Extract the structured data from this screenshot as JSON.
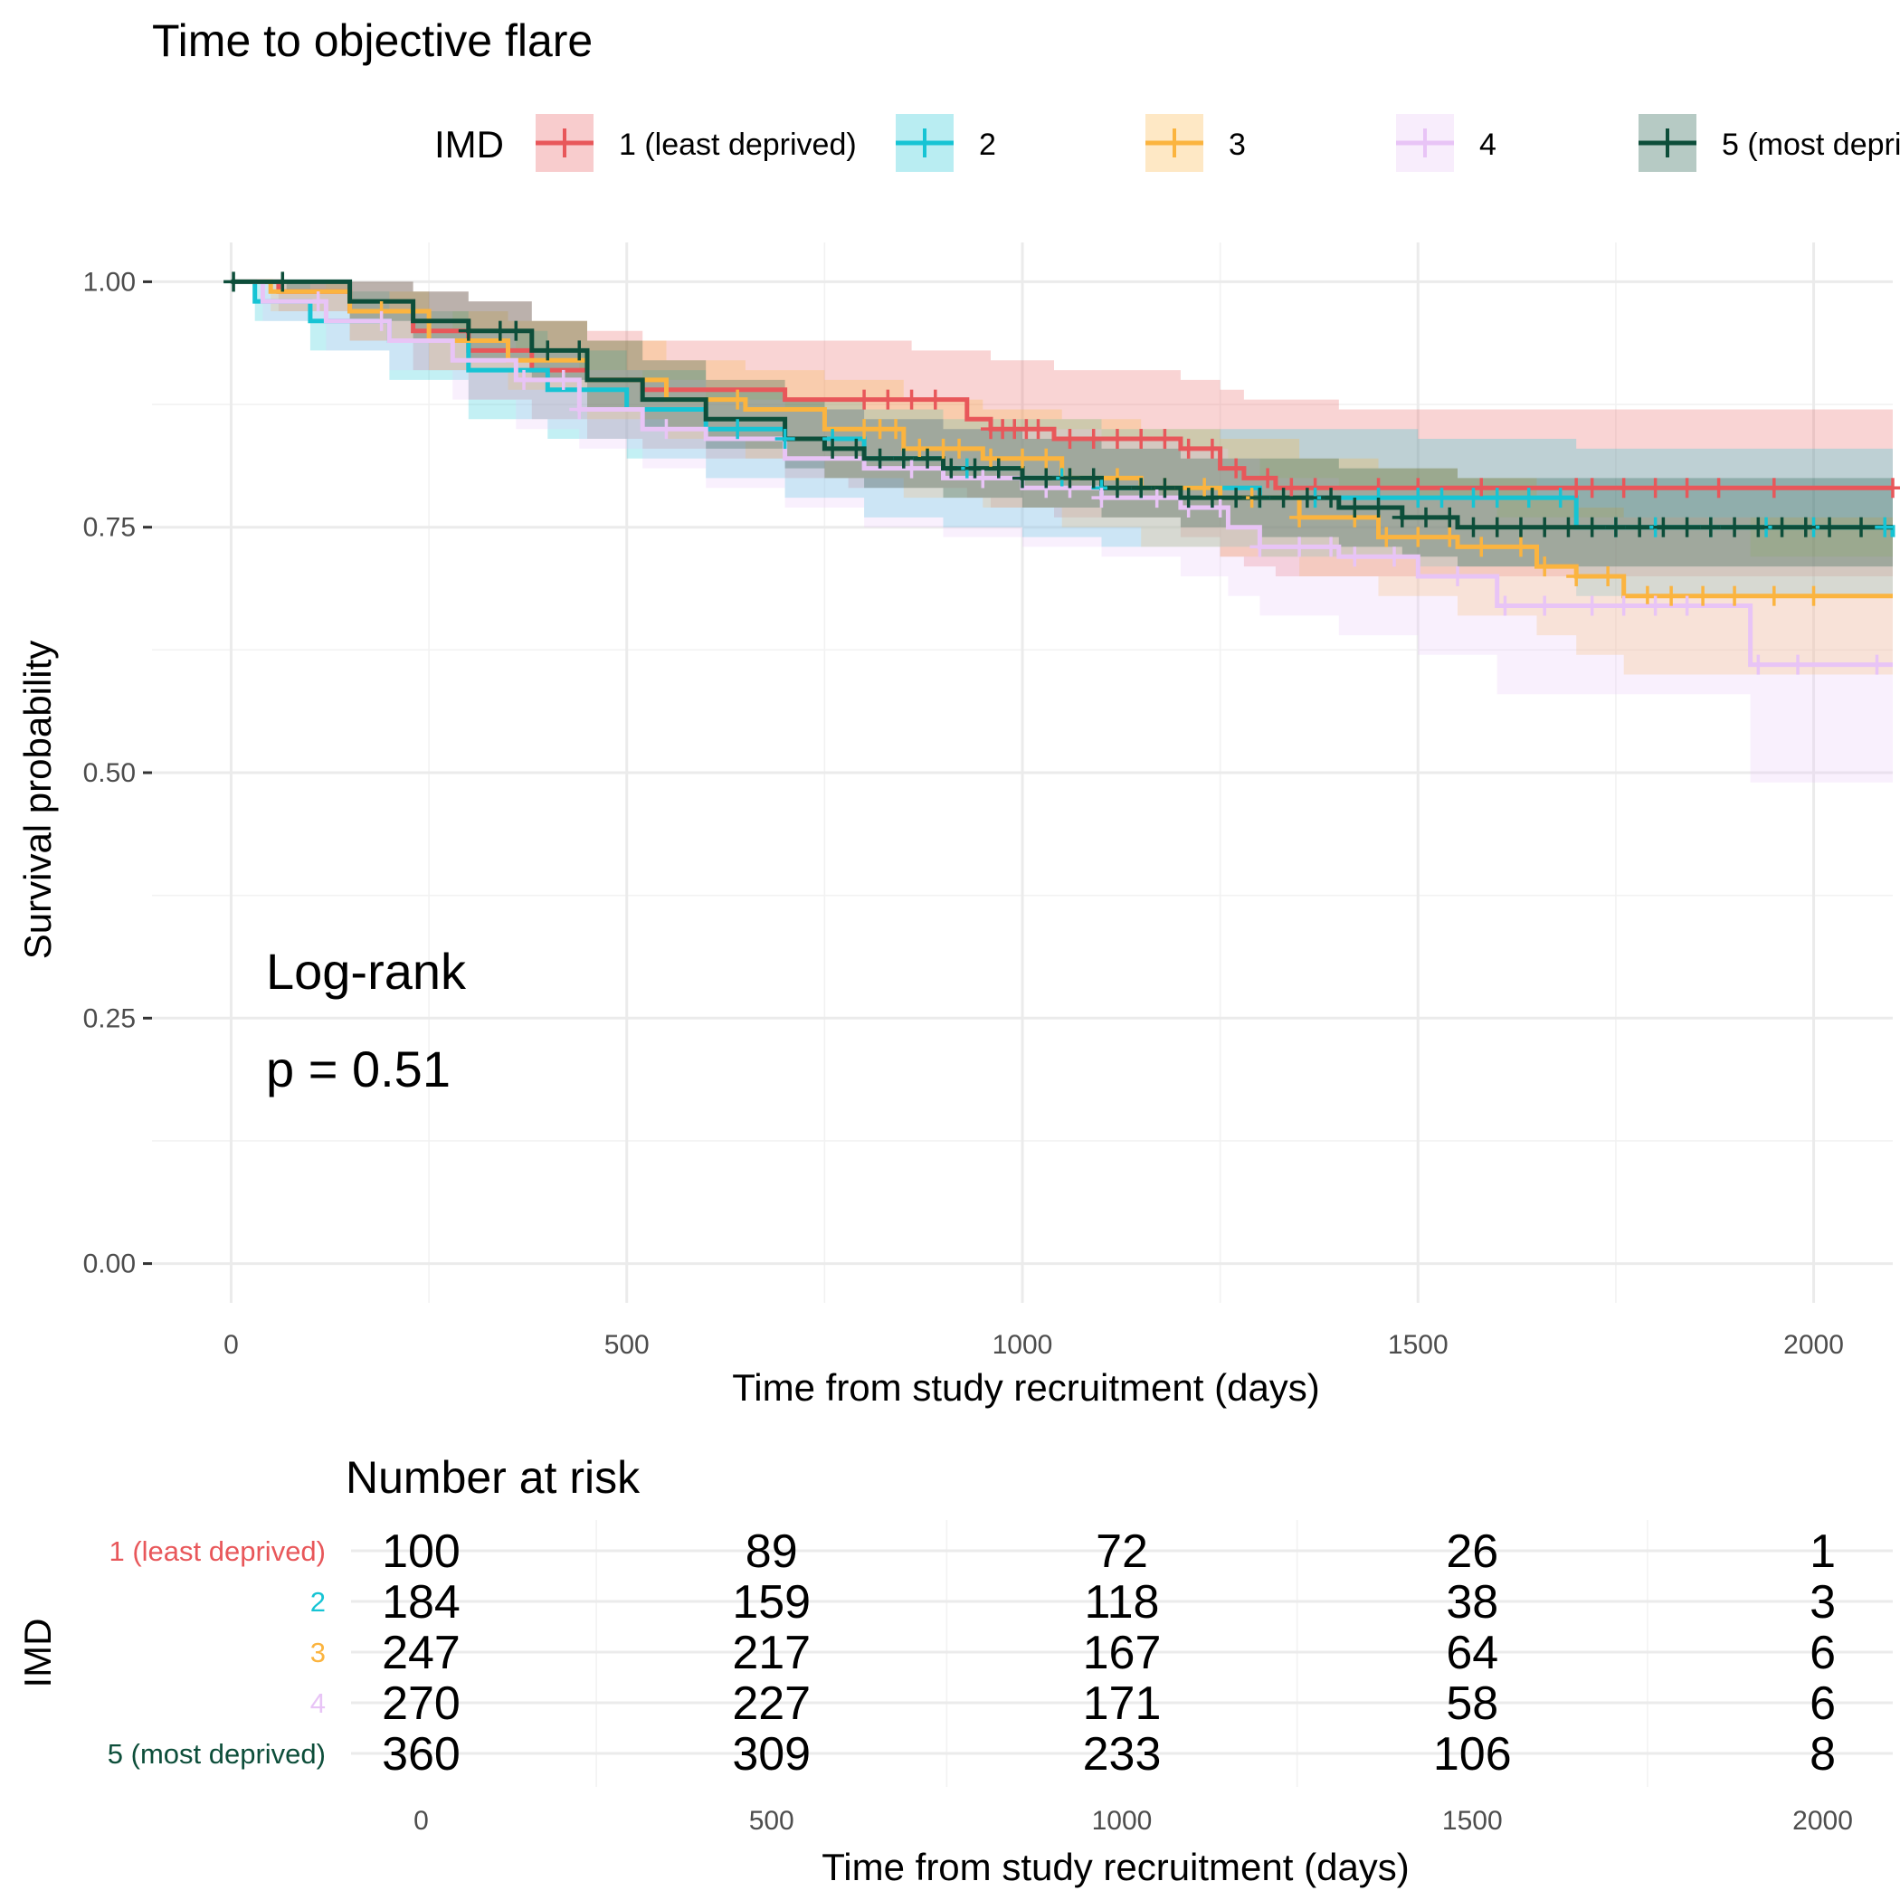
{
  "chart_data": {
    "type": "line",
    "subtype": "kaplan-meier survival curves with confidence bands",
    "title": "Time to objective flare",
    "xlabel": "Time from study recruitment (days)",
    "ylabel": "Survival probability",
    "xlim": [
      -100,
      2100
    ],
    "ylim": [
      -0.04,
      1.04
    ],
    "x_ticks": [
      0,
      500,
      1000,
      1500,
      2000
    ],
    "x_tick_labels": [
      "0",
      "500",
      "1000",
      "1500",
      "2000"
    ],
    "y_ticks": [
      0,
      0.25,
      0.5,
      0.75,
      1.0
    ],
    "y_tick_labels": [
      "0.00",
      "0.25",
      "0.50",
      "0.75",
      "1.00"
    ],
    "grid": true,
    "legend": {
      "title": "IMD",
      "position": "top"
    },
    "annotation": {
      "line1": "Log-rank",
      "line2": "p = 0.51"
    },
    "series": [
      {
        "name": "1 (least deprived)",
        "color": "#E8575A",
        "x": [
          0,
          60,
          150,
          230,
          300,
          380,
          450,
          520,
          600,
          700,
          780,
          860,
          930,
          960,
          1040,
          1200,
          1250,
          1280,
          1320,
          1400,
          2100
        ],
        "y": [
          1.0,
          0.99,
          0.97,
          0.95,
          0.93,
          0.91,
          0.9,
          0.89,
          0.89,
          0.88,
          0.88,
          0.88,
          0.86,
          0.85,
          0.84,
          0.83,
          0.81,
          0.8,
          0.79,
          0.79,
          0.79
        ],
        "lower": [
          1.0,
          0.97,
          0.94,
          0.91,
          0.88,
          0.86,
          0.84,
          0.83,
          0.82,
          0.8,
          0.79,
          0.79,
          0.78,
          0.77,
          0.76,
          0.74,
          0.72,
          0.71,
          0.7,
          0.7,
          0.7
        ],
        "upper": [
          1.0,
          1.0,
          1.0,
          0.99,
          0.98,
          0.96,
          0.95,
          0.94,
          0.94,
          0.94,
          0.94,
          0.93,
          0.93,
          0.92,
          0.91,
          0.9,
          0.89,
          0.88,
          0.88,
          0.87,
          0.87
        ],
        "censor_x": [
          800,
          830,
          860,
          890,
          960,
          975,
          990,
          1005,
          1020,
          1060,
          1090,
          1120,
          1150,
          1180,
          1210,
          1240,
          1270,
          1310,
          1340,
          1370,
          1450,
          1500,
          1580,
          1700,
          1720,
          1760,
          1800,
          1840,
          1880,
          1950,
          2100
        ]
      },
      {
        "name": "2",
        "color": "#16C4D4",
        "x": [
          0,
          30,
          100,
          200,
          300,
          400,
          500,
          600,
          700,
          800,
          900,
          1000,
          1100,
          1200,
          1300,
          1400,
          1500,
          1700,
          2100
        ],
        "y": [
          1.0,
          0.98,
          0.96,
          0.94,
          0.91,
          0.89,
          0.87,
          0.85,
          0.84,
          0.82,
          0.81,
          0.8,
          0.79,
          0.79,
          0.78,
          0.78,
          0.78,
          0.75,
          0.74
        ],
        "lower": [
          1.0,
          0.96,
          0.93,
          0.9,
          0.86,
          0.84,
          0.82,
          0.8,
          0.78,
          0.76,
          0.75,
          0.74,
          0.73,
          0.73,
          0.72,
          0.72,
          0.71,
          0.68,
          0.67
        ],
        "upper": [
          1.0,
          1.0,
          0.99,
          0.97,
          0.95,
          0.93,
          0.91,
          0.89,
          0.88,
          0.87,
          0.86,
          0.86,
          0.85,
          0.85,
          0.85,
          0.85,
          0.84,
          0.83,
          0.82
        ],
        "censor_x": [
          640,
          700,
          760,
          850,
          930,
          1050,
          1100,
          1150,
          1300,
          1370,
          1450,
          1500,
          1530,
          1570,
          1600,
          1640,
          1680,
          1750,
          1800,
          1870,
          1940,
          2000,
          2090
        ]
      },
      {
        "name": "3",
        "color": "#FBB43F",
        "x": [
          0,
          50,
          150,
          250,
          350,
          450,
          550,
          650,
          750,
          850,
          950,
          1050,
          1150,
          1250,
          1350,
          1450,
          1550,
          1650,
          1700,
          1760,
          2100
        ],
        "y": [
          1.0,
          0.99,
          0.97,
          0.94,
          0.92,
          0.9,
          0.88,
          0.87,
          0.85,
          0.83,
          0.82,
          0.8,
          0.79,
          0.78,
          0.76,
          0.74,
          0.73,
          0.71,
          0.7,
          0.68,
          0.68
        ],
        "lower": [
          1.0,
          0.97,
          0.94,
          0.91,
          0.89,
          0.86,
          0.84,
          0.82,
          0.8,
          0.78,
          0.77,
          0.75,
          0.73,
          0.72,
          0.7,
          0.68,
          0.66,
          0.64,
          0.62,
          0.6,
          0.6
        ],
        "upper": [
          1.0,
          1.0,
          0.99,
          0.97,
          0.96,
          0.94,
          0.92,
          0.91,
          0.9,
          0.88,
          0.87,
          0.86,
          0.85,
          0.84,
          0.82,
          0.81,
          0.8,
          0.78,
          0.77,
          0.76,
          0.76
        ],
        "censor_x": [
          190,
          640,
          800,
          820,
          840,
          870,
          900,
          920,
          960,
          1000,
          1030,
          1060,
          1120,
          1180,
          1230,
          1290,
          1350,
          1420,
          1460,
          1500,
          1540,
          1580,
          1630,
          1660,
          1700,
          1740,
          1790,
          1820,
          1860,
          1900,
          1950,
          2000
        ]
      },
      {
        "name": "4",
        "color": "#E8C4F6",
        "x": [
          0,
          40,
          120,
          200,
          280,
          360,
          440,
          520,
          600,
          700,
          800,
          900,
          1000,
          1100,
          1200,
          1260,
          1300,
          1400,
          1500,
          1600,
          1920,
          2100
        ],
        "y": [
          1.0,
          0.98,
          0.96,
          0.94,
          0.92,
          0.9,
          0.87,
          0.85,
          0.84,
          0.82,
          0.81,
          0.8,
          0.79,
          0.78,
          0.77,
          0.75,
          0.73,
          0.72,
          0.7,
          0.67,
          0.61,
          0.61
        ],
        "lower": [
          1.0,
          0.96,
          0.93,
          0.91,
          0.88,
          0.85,
          0.83,
          0.81,
          0.79,
          0.77,
          0.75,
          0.74,
          0.73,
          0.72,
          0.7,
          0.68,
          0.66,
          0.64,
          0.62,
          0.58,
          0.49,
          0.49
        ],
        "upper": [
          1.0,
          1.0,
          0.99,
          0.97,
          0.95,
          0.93,
          0.91,
          0.9,
          0.88,
          0.87,
          0.86,
          0.85,
          0.85,
          0.84,
          0.83,
          0.82,
          0.8,
          0.79,
          0.78,
          0.76,
          0.72,
          0.72
        ],
        "censor_x": [
          110,
          190,
          370,
          420,
          440,
          550,
          860,
          950,
          1030,
          1060,
          1100,
          1170,
          1210,
          1250,
          1300,
          1350,
          1390,
          1420,
          1470,
          1550,
          1610,
          1660,
          1720,
          1760,
          1800,
          1840,
          1930,
          1980,
          2080
        ]
      },
      {
        "name": "5 (most deprived)",
        "color": "#0D4E3A",
        "x": [
          0,
          70,
          150,
          230,
          300,
          380,
          450,
          520,
          600,
          700,
          750,
          800,
          900,
          1000,
          1100,
          1200,
          1300,
          1400,
          1480,
          1550,
          2100
        ],
        "y": [
          1.0,
          1.0,
          0.98,
          0.96,
          0.95,
          0.93,
          0.9,
          0.88,
          0.86,
          0.84,
          0.83,
          0.82,
          0.81,
          0.8,
          0.79,
          0.78,
          0.78,
          0.77,
          0.76,
          0.75,
          0.75
        ],
        "lower": [
          1.0,
          0.99,
          0.96,
          0.94,
          0.92,
          0.9,
          0.87,
          0.85,
          0.83,
          0.81,
          0.8,
          0.79,
          0.78,
          0.77,
          0.76,
          0.75,
          0.74,
          0.73,
          0.72,
          0.71,
          0.7
        ],
        "upper": [
          1.0,
          1.0,
          1.0,
          0.99,
          0.98,
          0.96,
          0.94,
          0.92,
          0.9,
          0.88,
          0.87,
          0.86,
          0.85,
          0.84,
          0.83,
          0.82,
          0.82,
          0.81,
          0.81,
          0.8,
          0.8
        ],
        "censor_x": [
          3,
          65,
          300,
          340,
          360,
          400,
          440,
          760,
          790,
          820,
          850,
          880,
          910,
          940,
          970,
          1000,
          1030,
          1060,
          1090,
          1120,
          1150,
          1180,
          1210,
          1240,
          1270,
          1300,
          1330,
          1360,
          1390,
          1420,
          1450,
          1480,
          1510,
          1540,
          1570,
          1600,
          1630,
          1660,
          1690,
          1720,
          1750,
          1780,
          1810,
          1840,
          1870,
          1900,
          1930,
          1960,
          1990,
          2020,
          2060
        ]
      }
    ],
    "risk_table": {
      "title": "Number at risk",
      "ylabel": "IMD",
      "xlabel": "Time from study recruitment (days)",
      "times": [
        0,
        500,
        1000,
        1500,
        2000
      ],
      "time_labels": [
        "0",
        "500",
        "1000",
        "1500",
        "2000"
      ],
      "rows": [
        {
          "label": "1 (least deprived)",
          "color": "#E8575A",
          "values": [
            "100",
            "89",
            "72",
            "26",
            "1"
          ]
        },
        {
          "label": "2",
          "color": "#16C4D4",
          "values": [
            "184",
            "159",
            "118",
            "38",
            "3"
          ]
        },
        {
          "label": "3",
          "color": "#FBB43F",
          "values": [
            "247",
            "217",
            "167",
            "64",
            "6"
          ]
        },
        {
          "label": "4",
          "color": "#E8C4F6",
          "values": [
            "270",
            "227",
            "171",
            "58",
            "6"
          ]
        },
        {
          "label": "5 (most deprived)",
          "color": "#0D4E3A",
          "values": [
            "360",
            "309",
            "233",
            "106",
            "8"
          ]
        }
      ]
    }
  }
}
